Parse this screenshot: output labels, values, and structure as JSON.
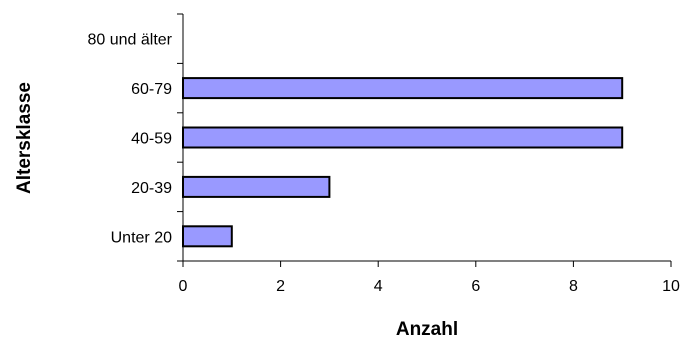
{
  "chart_data": {
    "type": "bar",
    "orientation": "horizontal",
    "title": "",
    "xlabel": "Anzahl",
    "ylabel": "Altersklasse",
    "categories": [
      "Unter 20",
      "20-39",
      "40-59",
      "60-79",
      "80 und älter"
    ],
    "values": [
      1,
      3,
      9,
      9,
      0
    ],
    "xlim": [
      0,
      10
    ],
    "xticks": [
      "0",
      "2",
      "4",
      "6",
      "8",
      "10"
    ],
    "grid": false,
    "legend": "none",
    "bar_color": "#9999ff",
    "bar_edge_color": "#000000"
  }
}
